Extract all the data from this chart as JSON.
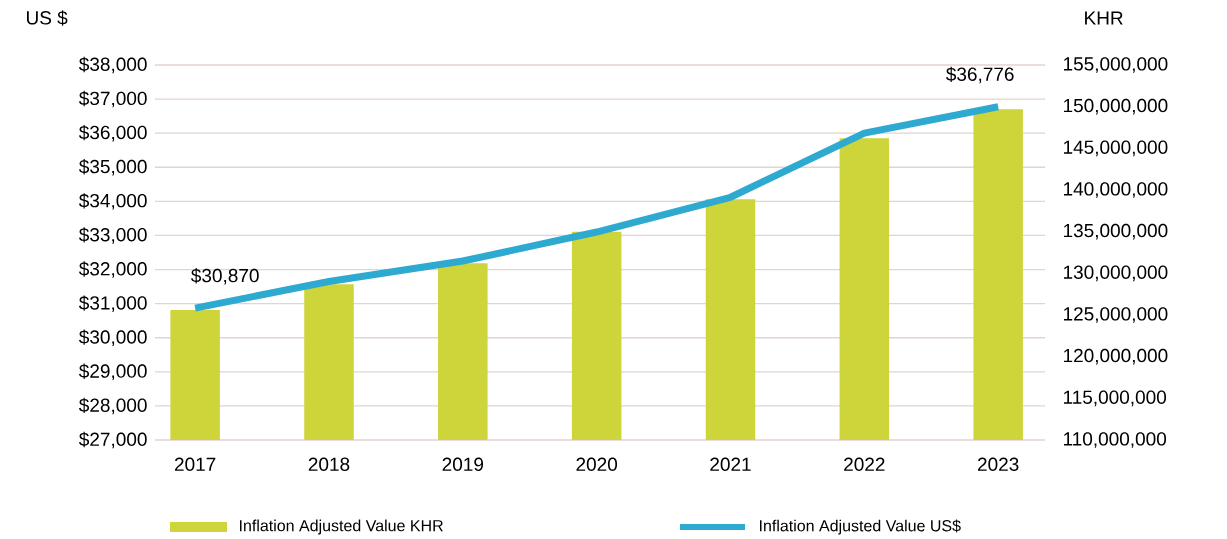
{
  "chart_data": {
    "type": "bar",
    "ylabel": "US $",
    "y2label": "KHR",
    "categories": [
      "2017",
      "2018",
      "2019",
      "2020",
      "2021",
      "2022",
      "2023"
    ],
    "series": [
      {
        "name": "Inflation Adjusted Value KHR",
        "axis": "y2",
        "color": "#cdd53a",
        "values": [
          125600000,
          128700000,
          131200000,
          135000000,
          138900000,
          146200000,
          149700000
        ]
      },
      {
        "name": "Inflation Adjusted Value US$",
        "type": "line",
        "axis": "y",
        "color": "#2eaad1",
        "line_style": "solid",
        "values": [
          30870,
          31650,
          32250,
          33100,
          34120,
          36000,
          36776
        ],
        "value_labels": [
          "$30,870",
          null,
          null,
          null,
          null,
          null,
          "$36,776"
        ]
      }
    ],
    "ylim": [
      27000,
      38000
    ],
    "yticks": [
      {
        "value": 27000,
        "label": "$27,000"
      },
      {
        "value": 28000,
        "label": "$28,000"
      },
      {
        "value": 29000,
        "label": "$29,000"
      },
      {
        "value": 30000,
        "label": "$30,000"
      },
      {
        "value": 31000,
        "label": "$31,000"
      },
      {
        "value": 32000,
        "label": "$32,000"
      },
      {
        "value": 33000,
        "label": "$33,000"
      },
      {
        "value": 34000,
        "label": "$34,000"
      },
      {
        "value": 35000,
        "label": "$35,000"
      },
      {
        "value": 36000,
        "label": "$36,000"
      },
      {
        "value": 37000,
        "label": "$37,000"
      },
      {
        "value": 38000,
        "label": "$38,000"
      }
    ],
    "y2lim": [
      110000000,
      155000000
    ],
    "y2ticks": [
      {
        "value": 110000000,
        "label": "110,000,000"
      },
      {
        "value": 115000000,
        "label": "115,000,000"
      },
      {
        "value": 120000000,
        "label": "120,000,000"
      },
      {
        "value": 125000000,
        "label": "125,000,000"
      },
      {
        "value": 130000000,
        "label": "130,000,000"
      },
      {
        "value": 135000000,
        "label": "135,000,000"
      },
      {
        "value": 140000000,
        "label": "140,000,000"
      },
      {
        "value": 145000000,
        "label": "145,000,000"
      },
      {
        "value": 150000000,
        "label": "150,000,000"
      },
      {
        "value": 155000000,
        "label": "155,000,000"
      }
    ],
    "grid": "y",
    "legend": "bottom"
  }
}
